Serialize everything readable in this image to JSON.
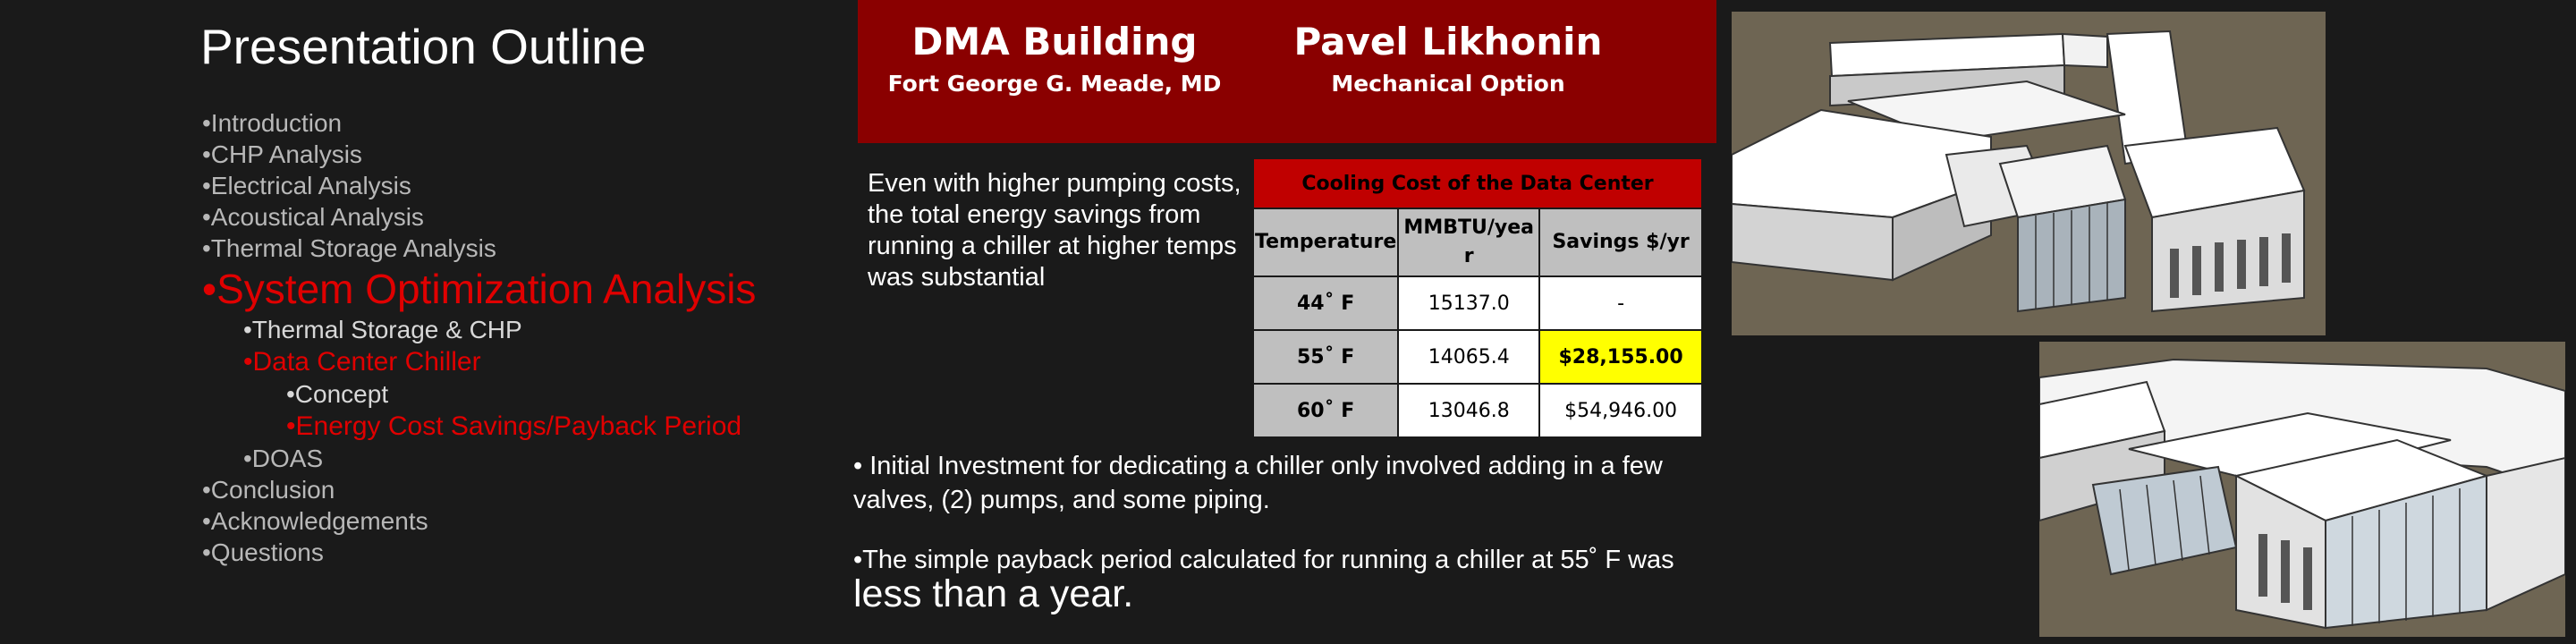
{
  "outline": {
    "title": "Presentation Outline",
    "items": [
      {
        "text": "•Introduction",
        "level": 1,
        "state": "normal"
      },
      {
        "text": "•CHP Analysis",
        "level": 1,
        "state": "normal"
      },
      {
        "text": "•Electrical Analysis",
        "level": 1,
        "state": "normal"
      },
      {
        "text": "•Acoustical Analysis",
        "level": 1,
        "state": "normal"
      },
      {
        "text": "•Thermal Storage Analysis",
        "level": 1,
        "state": "normal"
      },
      {
        "text": "•System Optimization Analysis",
        "level": 1,
        "state": "current-big"
      },
      {
        "text": "•Thermal Storage & CHP",
        "level": 2,
        "state": "white"
      },
      {
        "text": "•Data Center Chiller",
        "level": 2,
        "state": "current"
      },
      {
        "text": "•Concept",
        "level": 3,
        "state": "white"
      },
      {
        "text": "•Energy Cost Savings/Payback Period",
        "level": 3,
        "state": "current"
      },
      {
        "text": "•DOAS",
        "level": 2,
        "state": "normal"
      },
      {
        "text": "•Conclusion",
        "level": 1,
        "state": "normal"
      },
      {
        "text": "•Acknowledgements",
        "level": 1,
        "state": "normal"
      },
      {
        "text": "•Questions",
        "level": 1,
        "state": "normal"
      }
    ]
  },
  "banner": {
    "left_title": "DMA Building",
    "left_sub": "Fort George G. Meade, MD",
    "right_title": "Pavel Likhonin",
    "right_sub": "Mechanical Option"
  },
  "intro": "Even with higher pumping costs, the total energy savings from running a chiller at higher temps was substantial",
  "table": {
    "caption": "Cooling Cost of the Data Center",
    "headers": [
      "Temperature",
      "MMBTU/year",
      "Savings $/yr"
    ],
    "rows": [
      {
        "temp": "44˚ F",
        "mmbtu": "15137.0",
        "savings": "-",
        "highlight": false
      },
      {
        "temp": "55˚ F",
        "mmbtu": "14065.4",
        "savings": "$28,155.00",
        "highlight": true
      },
      {
        "temp": "60˚ F",
        "mmbtu": "13046.8",
        "savings": "$54,946.00",
        "highlight": false
      }
    ]
  },
  "bullets": {
    "b1": "• Initial Investment for dedicating a chiller only involved adding in a few valves, (2) pumps, and some piping.",
    "b2_main": "•The simple payback period calculated for running a chiller at 55˚ F was ",
    "b2_large": "less than a year."
  },
  "colors": {
    "background": "#1a1a1a",
    "banner": "#8a0000",
    "highlight_text": "#e00000",
    "table_caption": "#c00000",
    "cell_highlight": "#ffff00"
  }
}
